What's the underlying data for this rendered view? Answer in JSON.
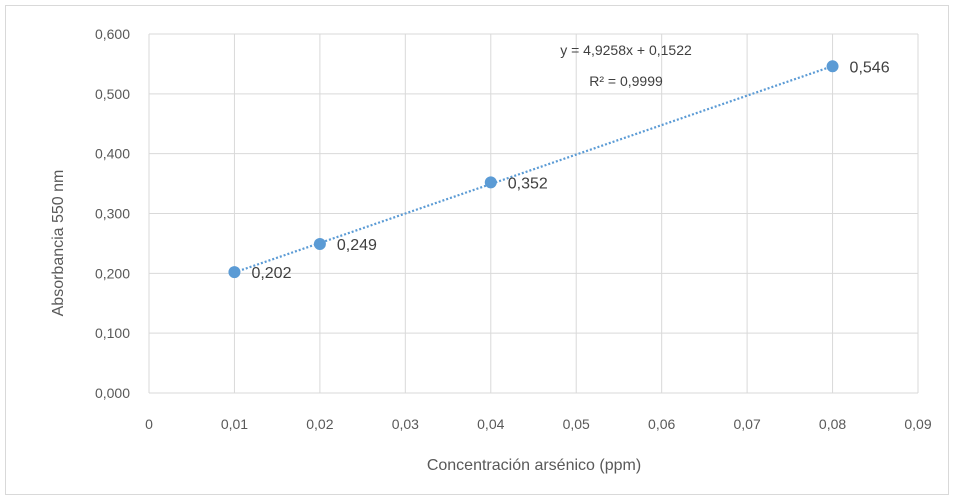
{
  "chart_data": {
    "type": "scatter",
    "xlabel": "Concentración arsénico (ppm)",
    "ylabel": "Absorbancia 550 nm",
    "xlim": [
      0,
      0.09
    ],
    "ylim": [
      0,
      0.6
    ],
    "xticks": [
      0,
      0.01,
      0.02,
      0.03,
      0.04,
      0.05,
      0.06,
      0.07,
      0.08,
      0.09
    ],
    "xtick_labels": [
      "0",
      "0,01",
      "0,02",
      "0,03",
      "0,04",
      "0,05",
      "0,06",
      "0,07",
      "0,08",
      "0,09"
    ],
    "yticks": [
      0,
      0.1,
      0.2,
      0.3,
      0.4,
      0.5,
      0.6
    ],
    "ytick_labels": [
      "0,000",
      "0,100",
      "0,200",
      "0,300",
      "0,400",
      "0,500",
      "0,600"
    ],
    "grid": true,
    "series": [
      {
        "x": [
          0.01,
          0.02,
          0.04,
          0.08
        ],
        "y": [
          0.202,
          0.249,
          0.352,
          0.546
        ],
        "labels": [
          "0,202",
          "0,249",
          "0,352",
          "0,546"
        ],
        "color": "#5b9bd5"
      }
    ],
    "trendline": {
      "type": "linear",
      "slope": 4.9258,
      "intercept": 0.1522,
      "x_range": [
        0.01,
        0.08
      ],
      "style": "dotted",
      "color": "#5b9bd5",
      "equation": "y = 4,9258x + 0,1522",
      "r_squared": "R² = 0,9999"
    }
  }
}
